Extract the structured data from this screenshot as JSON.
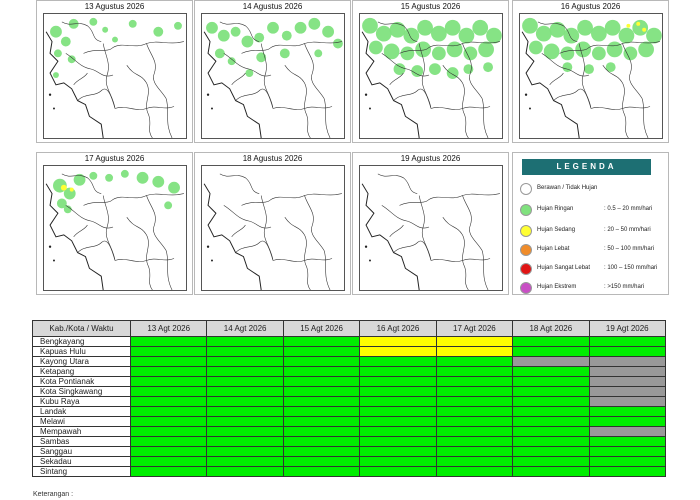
{
  "maps": [
    {
      "title": "13 Agustus 2026",
      "coverage": "low"
    },
    {
      "title": "14 Agustus 2026",
      "coverage": "medium"
    },
    {
      "title": "15 Agustus 2026",
      "coverage": "high"
    },
    {
      "title": "16 Agustus 2026",
      "coverage": "high_yellow"
    },
    {
      "title": "17 Agustus 2026",
      "coverage": "low_yellow"
    },
    {
      "title": "18 Agustus 2026",
      "coverage": "none"
    },
    {
      "title": "19 Agustus 2026",
      "coverage": "none"
    }
  ],
  "legend": {
    "title": "LEGENDA",
    "items": [
      {
        "name": "Berawan / Tidak Hujan",
        "range": "",
        "color": "#ffffff"
      },
      {
        "name": "Hujan Ringan",
        "range": ": 0.5 – 20 mm/hari",
        "color": "#80e27e"
      },
      {
        "name": "Hujan Sedang",
        "range": ": 20 – 50 mm/hari",
        "color": "#ffff33"
      },
      {
        "name": "Hujan Lebat",
        "range": ": 50 – 100 mm/hari",
        "color": "#f08c2a"
      },
      {
        "name": "Hujan Sangat Lebat",
        "range": ": 100 – 150 mm/hari",
        "color": "#e01414"
      },
      {
        "name": "Hujan Ekstrem",
        "range": ": >150 mm/hari",
        "color": "#c84fc4"
      }
    ]
  },
  "table": {
    "header": "Kab./Kota / Waktu",
    "days": [
      "13 Agt 2026",
      "14 Agt 2026",
      "15 Agt 2026",
      "16 Agt 2026",
      "17 Agt 2026",
      "18 Agt 2026",
      "19 Agt 2026"
    ],
    "rows": [
      {
        "name": "Bengkayang",
        "cells": [
          "g",
          "g",
          "g",
          "y",
          "y",
          "g",
          "g"
        ]
      },
      {
        "name": "Kapuas Hulu",
        "cells": [
          "g",
          "g",
          "g",
          "y",
          "y",
          "g",
          "g"
        ]
      },
      {
        "name": "Kayong Utara",
        "cells": [
          "g",
          "g",
          "g",
          "g",
          "g",
          "x",
          "x"
        ]
      },
      {
        "name": "Ketapang",
        "cells": [
          "g",
          "g",
          "g",
          "g",
          "g",
          "g",
          "x"
        ]
      },
      {
        "name": "Kota Pontianak",
        "cells": [
          "g",
          "g",
          "g",
          "g",
          "g",
          "g",
          "x"
        ]
      },
      {
        "name": "Kota Singkawang",
        "cells": [
          "g",
          "g",
          "g",
          "g",
          "g",
          "g",
          "x"
        ]
      },
      {
        "name": "Kubu Raya",
        "cells": [
          "g",
          "g",
          "g",
          "g",
          "g",
          "g",
          "x"
        ]
      },
      {
        "name": "Landak",
        "cells": [
          "g",
          "g",
          "g",
          "g",
          "g",
          "g",
          "g"
        ]
      },
      {
        "name": "Melawi",
        "cells": [
          "g",
          "g",
          "g",
          "g",
          "g",
          "g",
          "g"
        ]
      },
      {
        "name": "Mempawah",
        "cells": [
          "g",
          "g",
          "g",
          "g",
          "g",
          "g",
          "x"
        ]
      },
      {
        "name": "Sambas",
        "cells": [
          "g",
          "g",
          "g",
          "g",
          "g",
          "g",
          "g"
        ]
      },
      {
        "name": "Sanggau",
        "cells": [
          "g",
          "g",
          "g",
          "g",
          "g",
          "g",
          "g"
        ]
      },
      {
        "name": "Sekadau",
        "cells": [
          "g",
          "g",
          "g",
          "g",
          "g",
          "g",
          "g"
        ]
      },
      {
        "name": "Sintang",
        "cells": [
          "g",
          "g",
          "g",
          "g",
          "g",
          "g",
          "g"
        ]
      }
    ],
    "colors": {
      "g": "#00ee00",
      "y": "#ffff00",
      "x": "#999999"
    }
  },
  "note": "Keterangan :"
}
